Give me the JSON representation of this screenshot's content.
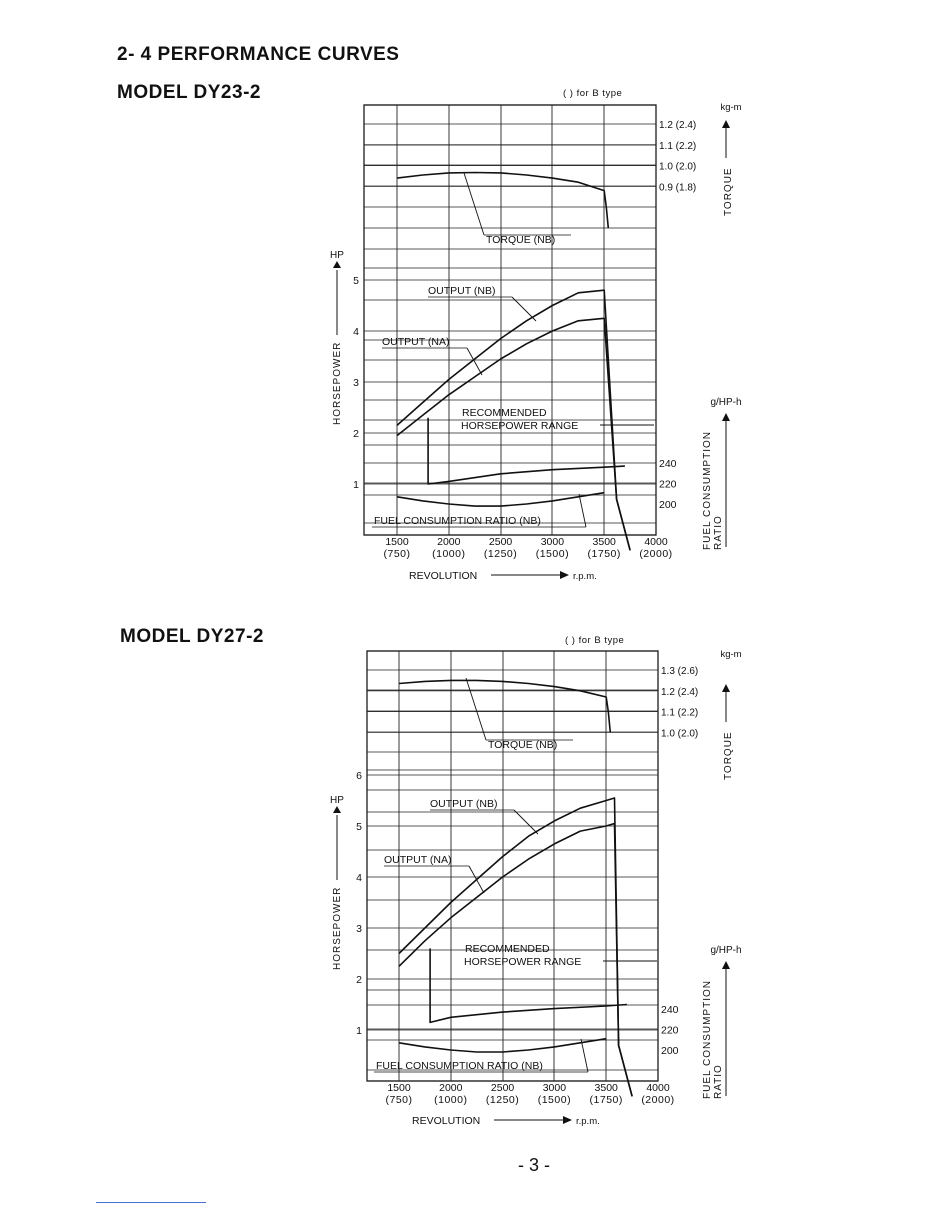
{
  "page": {
    "section_title": "2- 4 PERFORMANCE CURVES",
    "page_number": "- 3 -"
  },
  "chart_data": [
    {
      "type": "line",
      "model_title": "MODEL DY23-2",
      "b_type_note": "(   ) for B type",
      "torque_unit": "kg-m",
      "torque_label": "TORQUE",
      "hp_unit": "HP",
      "hp_label": "HORSEPOWER",
      "fuel_unit": "g/HP-h",
      "fuel_label_1": "FUEL CONSUMPTION",
      "fuel_label_2": "RATIO",
      "xlabel": "REVOLUTION",
      "x_unit": "r.p.m.",
      "x_ticks": [
        "1500",
        "2000",
        "2500",
        "3000",
        "3500",
        "4000"
      ],
      "x_ticks_b": [
        "(750)",
        "(1000)",
        "(1250)",
        "(1500)",
        "(1750)",
        "(2000)"
      ],
      "xlim": [
        1200,
        4000
      ],
      "torque_ticks": [
        {
          "value": 1.2,
          "label": "1.2 (2.4)"
        },
        {
          "value": 1.1,
          "label": "1.1 (2.2)"
        },
        {
          "value": 1.0,
          "label": "1.0 (2.0)"
        },
        {
          "value": 0.9,
          "label": "0.9 (1.8)"
        }
      ],
      "torque_range": [
        0.45,
        1.3
      ],
      "hp_ticks": [
        "1",
        "2",
        "3",
        "4",
        "5"
      ],
      "hp_range": [
        0,
        9
      ],
      "fuel_ticks": [
        "240",
        "220",
        "200"
      ],
      "fuel_range": [
        180,
        430
      ],
      "recommended_label_1": "RECOMMENDED",
      "recommended_label_2": "HORSEPOWER RANGE",
      "torque_curve_label": "TORQUE (NB)",
      "output_nb_label": "OUTPUT (NB)",
      "output_na_label": "OUTPUT (NA)",
      "fuel_curve_label": "FUEL CONSUMPTION RATIO (NB)",
      "series": [
        {
          "name": "TORQUE (NB)",
          "axis": "torque",
          "x": [
            1500,
            1750,
            2000,
            2250,
            2500,
            2750,
            3000,
            3250,
            3500,
            3520,
            3540
          ],
          "y": [
            0.94,
            0.955,
            0.965,
            0.967,
            0.965,
            0.955,
            0.94,
            0.92,
            0.88,
            0.8,
            0.7
          ]
        },
        {
          "name": "OUTPUT (NB)",
          "axis": "hp",
          "x": [
            1500,
            1750,
            2000,
            2250,
            2500,
            2750,
            3000,
            3250,
            3500,
            3620,
            3750
          ],
          "y": [
            2.15,
            2.6,
            3.05,
            3.45,
            3.85,
            4.2,
            4.5,
            4.75,
            4.8,
            0.7,
            -0.3
          ]
        },
        {
          "name": "OUTPUT (NA)",
          "axis": "hp",
          "x": [
            1500,
            1750,
            2000,
            2250,
            2500,
            2750,
            3000,
            3250,
            3500,
            3620,
            3750
          ],
          "y": [
            1.95,
            2.35,
            2.75,
            3.1,
            3.45,
            3.75,
            4.0,
            4.2,
            4.25,
            0.7,
            -0.3
          ]
        },
        {
          "name": "FUEL CONSUMPTION RATIO (NB)",
          "axis": "fuel",
          "x": [
            1500,
            1750,
            2000,
            2250,
            2500,
            2750,
            3000,
            3250,
            3500
          ],
          "y": [
            207,
            203,
            200,
            198,
            198,
            200,
            203,
            207,
            211
          ]
        },
        {
          "name": "RECOMMENDED HORSEPOWER RANGE",
          "axis": "hp",
          "x": [
            1800,
            1800,
            2000,
            2500,
            3000,
            3500,
            3700
          ],
          "y": [
            2.3,
            1.0,
            1.05,
            1.2,
            1.28,
            1.33,
            1.35
          ]
        }
      ]
    },
    {
      "type": "line",
      "model_title": "MODEL DY27-2",
      "b_type_note": "(   ) for B type",
      "torque_unit": "kg-m",
      "torque_label": "TORQUE",
      "hp_unit": "HP",
      "hp_label": "HORSEPOWER",
      "fuel_unit": "g/HP-h",
      "fuel_label_1": "FUEL CONSUMPTION",
      "fuel_label_2": "RATIO",
      "xlabel": "REVOLUTION",
      "x_unit": "r.p.m.",
      "x_ticks": [
        "1500",
        "2000",
        "2500",
        "3000",
        "3500",
        "4000"
      ],
      "x_ticks_b": [
        "(750)",
        "(1000)",
        "(1250)",
        "(1500)",
        "(1750)",
        "(2000)"
      ],
      "xlim": [
        1200,
        4000
      ],
      "torque_ticks": [
        {
          "value": 1.3,
          "label": "1.3 (2.6)"
        },
        {
          "value": 1.2,
          "label": "1.2 (2.4)"
        },
        {
          "value": 1.1,
          "label": "1.1 (2.2)"
        },
        {
          "value": 1.0,
          "label": "1.0 (2.0)"
        }
      ],
      "torque_range": [
        0.55,
        1.4
      ],
      "hp_ticks": [
        "1",
        "2",
        "3",
        "4",
        "5",
        "6"
      ],
      "hp_range": [
        0,
        9
      ],
      "fuel_ticks": [
        "240",
        "220",
        "200"
      ],
      "fuel_range": [
        180,
        430
      ],
      "recommended_label_1": "RECOMMENDED",
      "recommended_label_2": "HORSEPOWER RANGE",
      "torque_curve_label": "TORQUE (NB)",
      "output_nb_label": "OUTPUT (NB)",
      "output_na_label": "OUTPUT (NA)",
      "fuel_curve_label": "FUEL CONSUMPTION RATIO (NB)",
      "series": [
        {
          "name": "TORQUE (NB)",
          "axis": "torque",
          "x": [
            1500,
            1750,
            2000,
            2250,
            2500,
            2750,
            3000,
            3250,
            3500,
            3520,
            3540
          ],
          "y": [
            1.235,
            1.245,
            1.25,
            1.25,
            1.245,
            1.235,
            1.22,
            1.2,
            1.17,
            1.1,
            1.0
          ]
        },
        {
          "name": "OUTPUT (NB)",
          "axis": "hp",
          "x": [
            1500,
            1750,
            2000,
            2250,
            2500,
            2750,
            3000,
            3250,
            3500,
            3580,
            3620,
            3750
          ],
          "y": [
            2.5,
            3.0,
            3.5,
            3.95,
            4.4,
            4.8,
            5.1,
            5.35,
            5.5,
            5.55,
            0.7,
            -0.3
          ]
        },
        {
          "name": "OUTPUT (NA)",
          "axis": "hp",
          "x": [
            1500,
            1750,
            2000,
            2250,
            2500,
            2750,
            3000,
            3250,
            3500,
            3580,
            3620,
            3750
          ],
          "y": [
            2.25,
            2.75,
            3.2,
            3.6,
            4.0,
            4.35,
            4.65,
            4.9,
            5.0,
            5.05,
            0.7,
            -0.3
          ]
        },
        {
          "name": "FUEL CONSUMPTION RATIO (NB)",
          "axis": "fuel",
          "x": [
            1500,
            1750,
            2000,
            2250,
            2500,
            2750,
            3000,
            3250,
            3500
          ],
          "y": [
            207,
            203,
            200,
            198,
            198,
            200,
            203,
            207,
            211
          ]
        },
        {
          "name": "RECOMMENDED HORSEPOWER RANGE",
          "axis": "hp",
          "x": [
            1800,
            1800,
            2000,
            2500,
            3000,
            3500,
            3700
          ],
          "y": [
            2.6,
            1.15,
            1.25,
            1.35,
            1.42,
            1.47,
            1.5
          ]
        }
      ]
    }
  ]
}
